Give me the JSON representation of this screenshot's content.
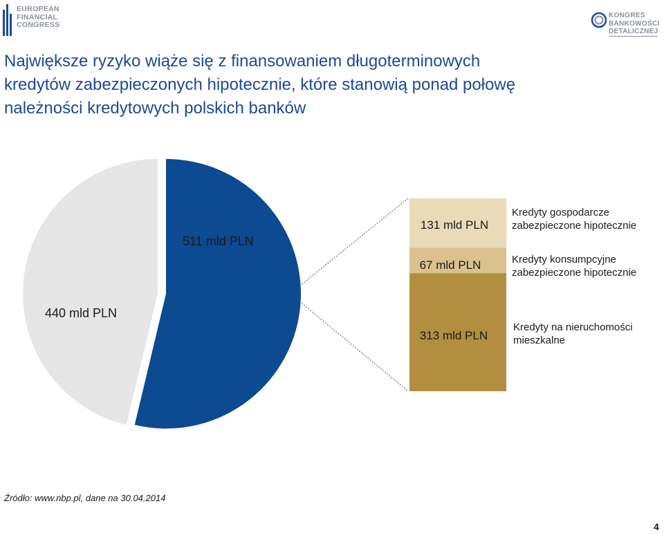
{
  "logos": {
    "left": {
      "name": "EUROPEAN FINANCIAL CONGRESS",
      "lines": [
        "EUROPEAN",
        "FINANCIAL",
        "CONGRESS"
      ]
    },
    "right": {
      "name": "KONGRES BANKOWOŚCI DETALICZNEJ",
      "lines": [
        "KONGRES",
        "BANKOWOŚCI",
        "DETALICZNEJ"
      ]
    }
  },
  "title_lines": [
    "Największe ryzyko wiąże się z finansowaniem długoterminowych",
    "kredytów zabezpieczonych hipotecznie, które stanowią ponad połowę",
    "należności kredytowych polskich banków"
  ],
  "chart_data": {
    "type": "pie",
    "title": "",
    "pie": {
      "slices": [
        {
          "label": "511 mld PLN",
          "value": 511,
          "color": "#0c4a91"
        },
        {
          "label": "440 mld PLN",
          "value": 440,
          "color": "#e6e6e6"
        }
      ]
    },
    "breakdown": {
      "type": "stacked-bar",
      "of_slice": "511 mld PLN",
      "segments": [
        {
          "label": "313 mld PLN",
          "value": 313,
          "color": "#b28f40",
          "description": "Kredyty na nieruchomości mieszkalne"
        },
        {
          "label": "67 mld PLN",
          "value": 67,
          "color": "#d9c28f",
          "description": "Kredyty konsumpcyjne zabezpieczone hipotecznie"
        },
        {
          "label": "131 mld PLN",
          "value": 131,
          "color": "#e9dab8",
          "description": "Kredyty gospodarcze zabezpieczone hipotecznie"
        }
      ]
    }
  },
  "source": "Źródło: www.nbp.pl, dane na 30.04.2014",
  "page_number": "4"
}
